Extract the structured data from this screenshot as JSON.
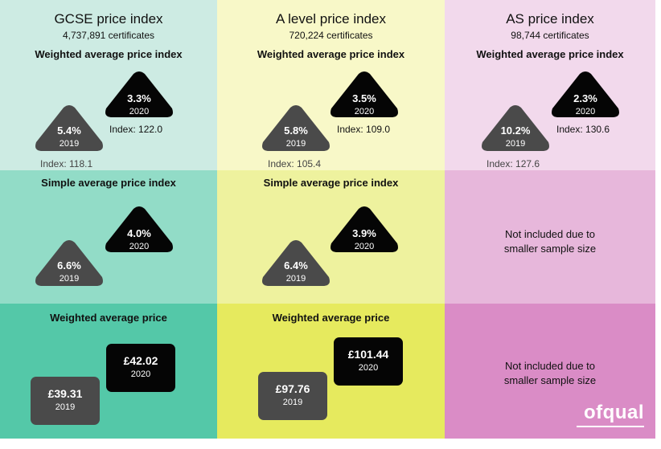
{
  "colors": {
    "gcse": [
      "#cdebe3",
      "#92dcc7",
      "#54c8a8"
    ],
    "alevel": [
      "#f8f8c8",
      "#eef29e",
      "#e6ea5e"
    ],
    "as": [
      "#f2d9ec",
      "#e7b7db",
      "#da8cc6"
    ],
    "black_shape": "#050505",
    "grey_shape": "#4a4a4a"
  },
  "columns": [
    {
      "title": "GCSE price index",
      "subtitle": "4,737,891 certificates",
      "weighted_index": {
        "title": "Weighted average price index",
        "y2019": {
          "value": "5.4%",
          "year": "2019",
          "index": "Index: 118.1"
        },
        "y2020": {
          "value": "3.3%",
          "year": "2020",
          "index": "Index: 122.0"
        }
      },
      "simple_index": {
        "title": "Simple average price index",
        "y2019": {
          "value": "6.6%",
          "year": "2019"
        },
        "y2020": {
          "value": "4.0%",
          "year": "2020"
        }
      },
      "weighted_price": {
        "title": "Weighted average price",
        "y2019": {
          "value": "£39.31",
          "year": "2019"
        },
        "y2020": {
          "value": "£42.02",
          "year": "2020"
        }
      }
    },
    {
      "title": "A level price index",
      "subtitle": "720,224 certificates",
      "weighted_index": {
        "title": "Weighted average price index",
        "y2019": {
          "value": "5.8%",
          "year": "2019",
          "index": "Index: 105.4"
        },
        "y2020": {
          "value": "3.5%",
          "year": "2020",
          "index": "Index: 109.0"
        }
      },
      "simple_index": {
        "title": "Simple average price index",
        "y2019": {
          "value": "6.4%",
          "year": "2019"
        },
        "y2020": {
          "value": "3.9%",
          "year": "2020"
        }
      },
      "weighted_price": {
        "title": "Weighted average price",
        "y2019": {
          "value": "£97.76",
          "year": "2019"
        },
        "y2020": {
          "value": "£101.44",
          "year": "2020"
        }
      }
    },
    {
      "title": "AS price index",
      "subtitle": "98,744 certificates",
      "weighted_index": {
        "title": "Weighted average price index",
        "y2019": {
          "value": "10.2%",
          "year": "2019",
          "index": "Index: 127.6"
        },
        "y2020": {
          "value": "2.3%",
          "year": "2020",
          "index": "Index: 130.6"
        }
      },
      "simple_index": {
        "na_line1": "Not included due to",
        "na_line2": "smaller sample size"
      },
      "weighted_price": {
        "na_line1": "Not included due to",
        "na_line2": "smaller sample size"
      }
    }
  ],
  "logo": "ofqual"
}
